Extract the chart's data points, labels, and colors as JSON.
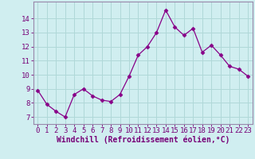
{
  "x": [
    0,
    1,
    2,
    3,
    4,
    5,
    6,
    7,
    8,
    9,
    10,
    11,
    12,
    13,
    14,
    15,
    16,
    17,
    18,
    19,
    20,
    21,
    22,
    23
  ],
  "y": [
    8.9,
    7.9,
    7.4,
    7.0,
    8.6,
    9.0,
    8.5,
    8.2,
    8.1,
    8.6,
    9.9,
    11.4,
    12.0,
    13.0,
    14.6,
    13.4,
    12.8,
    13.3,
    11.6,
    12.1,
    11.4,
    10.6,
    10.4,
    9.9
  ],
  "line_color": "#880088",
  "marker": "D",
  "marker_size": 2.5,
  "bg_color": "#d0eef0",
  "grid_color": "#b0d8d8",
  "xlabel": "Windchill (Refroidissement éolien,°C)",
  "xlabel_color": "#770077",
  "tick_color": "#770077",
  "ylim": [
    6.5,
    15.2
  ],
  "xlim": [
    -0.5,
    23.5
  ],
  "yticks": [
    7,
    8,
    9,
    10,
    11,
    12,
    13,
    14
  ],
  "xticks": [
    0,
    1,
    2,
    3,
    4,
    5,
    6,
    7,
    8,
    9,
    10,
    11,
    12,
    13,
    14,
    15,
    16,
    17,
    18,
    19,
    20,
    21,
    22,
    23
  ],
  "spine_color": "#9988aa",
  "xlabel_fontsize": 7,
  "tick_fontsize": 6.5
}
